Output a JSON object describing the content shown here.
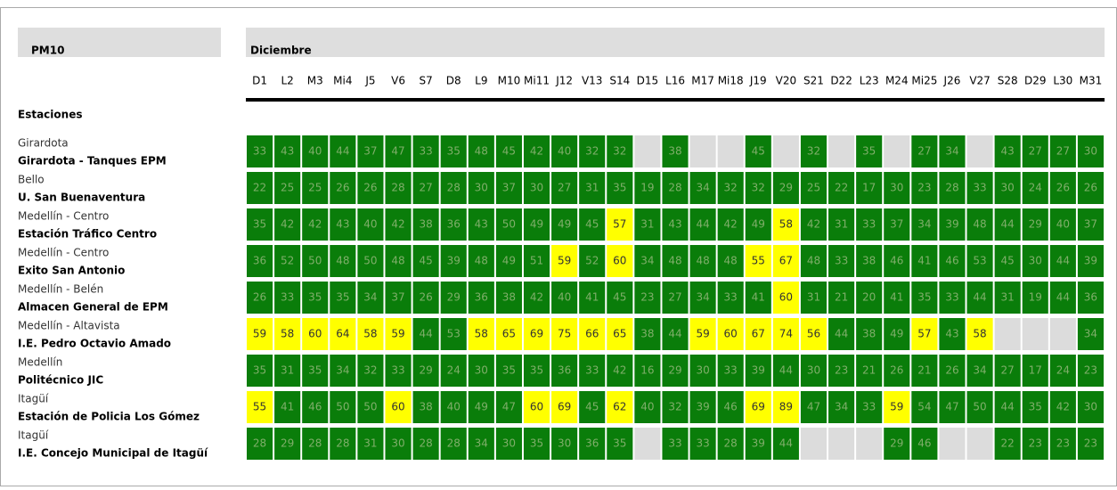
{
  "header": {
    "title": "PM10",
    "month": "Diciembre",
    "stations_label": "Estaciones"
  },
  "days": [
    "D1",
    "L2",
    "M3",
    "Mi4",
    "J5",
    "V6",
    "S7",
    "D8",
    "L9",
    "M10",
    "Mi11",
    "J12",
    "V13",
    "S14",
    "D15",
    "L16",
    "M17",
    "Mi18",
    "J19",
    "V20",
    "S21",
    "D22",
    "L23",
    "M24",
    "Mi25",
    "J26",
    "V27",
    "S28",
    "D29",
    "L30",
    "M31"
  ],
  "stations": [
    {
      "municipality": "Girardota",
      "name": "Girardota - Tanques EPM",
      "values": [
        33,
        43,
        40,
        44,
        37,
        47,
        33,
        35,
        48,
        45,
        42,
        40,
        32,
        32,
        null,
        38,
        null,
        null,
        45,
        null,
        32,
        null,
        35,
        null,
        27,
        34,
        null,
        43,
        27,
        27,
        30
      ],
      "colors": [
        "#0a7d0a",
        "#0a7d0a",
        "#0a7d0a",
        "#0a7d0a",
        "#0a7d0a",
        "#0a7d0a",
        "#0a7d0a",
        "#0a7d0a",
        "#0a7d0a",
        "#0a7d0a",
        "#0a7d0a",
        "#0a7d0a",
        "#0a7d0a",
        "#0a7d0a",
        null,
        "#0a7d0a",
        null,
        null,
        "#0a7d0a",
        null,
        "#0a7d0a",
        null,
        "#0a7d0a",
        null,
        "#0a7d0a",
        "#0a7d0a",
        null,
        "#0a7d0a",
        "#0a7d0a",
        "#0a7d0a",
        "#0a7d0a"
      ]
    },
    {
      "municipality": "Bello",
      "name": "U. San Buenaventura",
      "values": [
        22,
        25,
        25,
        26,
        26,
        28,
        27,
        28,
        30,
        37,
        30,
        27,
        31,
        35,
        19,
        28,
        34,
        32,
        32,
        29,
        25,
        22,
        17,
        30,
        23,
        28,
        33,
        30,
        24,
        26,
        26
      ],
      "colors": [
        "#0a7d0a",
        "#0a7d0a",
        "#0a7d0a",
        "#0a7d0a",
        "#0a7d0a",
        "#0a7d0a",
        "#0a7d0a",
        "#0a7d0a",
        "#0a7d0a",
        "#0a7d0a",
        "#0a7d0a",
        "#0a7d0a",
        "#0a7d0a",
        "#0a7d0a",
        "#0a7d0a",
        "#0a7d0a",
        "#0a7d0a",
        "#0a7d0a",
        "#0a7d0a",
        "#0a7d0a",
        "#0a7d0a",
        "#0a7d0a",
        "#0a7d0a",
        "#0a7d0a",
        "#0a7d0a",
        "#0a7d0a",
        "#0a7d0a",
        "#0a7d0a",
        "#0a7d0a",
        "#0a7d0a",
        "#0a7d0a"
      ]
    },
    {
      "municipality": "Medellín - Centro",
      "name": "Estación Tráfico Centro",
      "values": [
        35,
        42,
        42,
        43,
        40,
        42,
        38,
        36,
        43,
        50,
        49,
        49,
        45,
        57,
        31,
        43,
        44,
        42,
        49,
        58,
        42,
        31,
        33,
        37,
        34,
        39,
        48,
        44,
        29,
        40,
        37
      ],
      "colors": [
        "#0a7d0a",
        "#0a7d0a",
        "#0a7d0a",
        "#0a7d0a",
        "#0a7d0a",
        "#0a7d0a",
        "#0a7d0a",
        "#0a7d0a",
        "#0a7d0a",
        "#0a7d0a",
        "#0a7d0a",
        "#0a7d0a",
        "#0a7d0a",
        "#ffff00",
        "#0a7d0a",
        "#0a7d0a",
        "#0a7d0a",
        "#0a7d0a",
        "#0a7d0a",
        "#ffff00",
        "#0a7d0a",
        "#0a7d0a",
        "#0a7d0a",
        "#0a7d0a",
        "#0a7d0a",
        "#0a7d0a",
        "#0a7d0a",
        "#0a7d0a",
        "#0a7d0a",
        "#0a7d0a",
        "#0a7d0a"
      ]
    },
    {
      "municipality": "Medellín - Centro",
      "name": "Exito San Antonio",
      "values": [
        36,
        52,
        50,
        48,
        50,
        48,
        45,
        39,
        48,
        49,
        51,
        59,
        52,
        60,
        34,
        48,
        48,
        48,
        55,
        67,
        48,
        33,
        38,
        46,
        41,
        46,
        53,
        45,
        30,
        44,
        39
      ],
      "colors": [
        "#0a7d0a",
        "#0a7d0a",
        "#0a7d0a",
        "#0a7d0a",
        "#0a7d0a",
        "#0a7d0a",
        "#0a7d0a",
        "#0a7d0a",
        "#0a7d0a",
        "#0a7d0a",
        "#0a7d0a",
        "#ffff00",
        "#0a7d0a",
        "#ffff00",
        "#0a7d0a",
        "#0a7d0a",
        "#0a7d0a",
        "#0a7d0a",
        "#ffff00",
        "#ffff00",
        "#0a7d0a",
        "#0a7d0a",
        "#0a7d0a",
        "#0a7d0a",
        "#0a7d0a",
        "#0a7d0a",
        "#0a7d0a",
        "#0a7d0a",
        "#0a7d0a",
        "#0a7d0a",
        "#0a7d0a"
      ]
    },
    {
      "municipality": "Medellín - Belén",
      "name": "Almacen General de EPM",
      "values": [
        26,
        33,
        35,
        35,
        34,
        37,
        26,
        29,
        36,
        38,
        42,
        40,
        41,
        45,
        23,
        27,
        34,
        33,
        41,
        60,
        31,
        21,
        20,
        41,
        35,
        33,
        44,
        31,
        19,
        44,
        36
      ],
      "colors": [
        "#0a7d0a",
        "#0a7d0a",
        "#0a7d0a",
        "#0a7d0a",
        "#0a7d0a",
        "#0a7d0a",
        "#0a7d0a",
        "#0a7d0a",
        "#0a7d0a",
        "#0a7d0a",
        "#0a7d0a",
        "#0a7d0a",
        "#0a7d0a",
        "#0a7d0a",
        "#0a7d0a",
        "#0a7d0a",
        "#0a7d0a",
        "#0a7d0a",
        "#0a7d0a",
        "#ffff00",
        "#0a7d0a",
        "#0a7d0a",
        "#0a7d0a",
        "#0a7d0a",
        "#0a7d0a",
        "#0a7d0a",
        "#0a7d0a",
        "#0a7d0a",
        "#0a7d0a",
        "#0a7d0a",
        "#0a7d0a"
      ]
    },
    {
      "municipality": "Medellín - Altavista",
      "name": "I.E. Pedro Octavio Amado",
      "values": [
        59,
        58,
        60,
        64,
        58,
        59,
        44,
        53,
        58,
        65,
        69,
        75,
        66,
        65,
        38,
        44,
        59,
        60,
        67,
        74,
        56,
        44,
        38,
        49,
        57,
        43,
        58,
        null,
        null,
        null,
        34
      ],
      "colors": [
        "#ffff00",
        "#ffff00",
        "#ffff00",
        "#ffff00",
        "#ffff00",
        "#ffff00",
        "#0a7d0a",
        "#0a7d0a",
        "#ffff00",
        "#ffff00",
        "#ffff00",
        "#ffff00",
        "#ffff00",
        "#ffff00",
        "#0a7d0a",
        "#0a7d0a",
        "#ffff00",
        "#ffff00",
        "#ffff00",
        "#ffff00",
        "#ffff00",
        "#0a7d0a",
        "#0a7d0a",
        "#0a7d0a",
        "#ffff00",
        "#0a7d0a",
        "#ffff00",
        null,
        null,
        null,
        "#0a7d0a"
      ]
    },
    {
      "municipality": "Medellín",
      "name": "Politécnico JIC",
      "values": [
        35,
        31,
        35,
        34,
        32,
        33,
        29,
        24,
        30,
        35,
        35,
        36,
        33,
        42,
        16,
        29,
        30,
        33,
        39,
        44,
        30,
        23,
        21,
        26,
        21,
        26,
        34,
        27,
        17,
        24,
        23
      ],
      "colors": [
        "#0a7d0a",
        "#0a7d0a",
        "#0a7d0a",
        "#0a7d0a",
        "#0a7d0a",
        "#0a7d0a",
        "#0a7d0a",
        "#0a7d0a",
        "#0a7d0a",
        "#0a7d0a",
        "#0a7d0a",
        "#0a7d0a",
        "#0a7d0a",
        "#0a7d0a",
        "#0a7d0a",
        "#0a7d0a",
        "#0a7d0a",
        "#0a7d0a",
        "#0a7d0a",
        "#0a7d0a",
        "#0a7d0a",
        "#0a7d0a",
        "#0a7d0a",
        "#0a7d0a",
        "#0a7d0a",
        "#0a7d0a",
        "#0a7d0a",
        "#0a7d0a",
        "#0a7d0a",
        "#0a7d0a",
        "#0a7d0a"
      ]
    },
    {
      "municipality": "Itagüí",
      "name": "Estación de Policia Los Gómez",
      "values": [
        55,
        41,
        46,
        50,
        50,
        60,
        38,
        40,
        49,
        47,
        60,
        69,
        45,
        62,
        40,
        32,
        39,
        46,
        69,
        89,
        47,
        34,
        33,
        59,
        54,
        47,
        50,
        44,
        35,
        42,
        30
      ],
      "colors": [
        "#ffff00",
        "#0a7d0a",
        "#0a7d0a",
        "#0a7d0a",
        "#0a7d0a",
        "#ffff00",
        "#0a7d0a",
        "#0a7d0a",
        "#0a7d0a",
        "#0a7d0a",
        "#ffff00",
        "#ffff00",
        "#0a7d0a",
        "#ffff00",
        "#0a7d0a",
        "#0a7d0a",
        "#0a7d0a",
        "#0a7d0a",
        "#ffff00",
        "#ffff00",
        "#0a7d0a",
        "#0a7d0a",
        "#0a7d0a",
        "#ffff00",
        "#0a7d0a",
        "#0a7d0a",
        "#0a7d0a",
        "#0a7d0a",
        "#0a7d0a",
        "#0a7d0a",
        "#0a7d0a"
      ]
    },
    {
      "municipality": "Itagüí",
      "name": "I.E. Concejo Municipal de Itagüí",
      "values": [
        28,
        29,
        28,
        28,
        31,
        30,
        28,
        28,
        34,
        30,
        35,
        30,
        36,
        35,
        null,
        33,
        33,
        28,
        39,
        44,
        null,
        null,
        null,
        29,
        46,
        null,
        null,
        22,
        23,
        23,
        23
      ],
      "colors": [
        "#0a7d0a",
        "#0a7d0a",
        "#0a7d0a",
        "#0a7d0a",
        "#0a7d0a",
        "#0a7d0a",
        "#0a7d0a",
        "#0a7d0a",
        "#0a7d0a",
        "#0a7d0a",
        "#0a7d0a",
        "#0a7d0a",
        "#0a7d0a",
        "#0a7d0a",
        null,
        "#0a7d0a",
        "#0a7d0a",
        "#0a7d0a",
        "#0a7d0a",
        "#0a7d0a",
        null,
        null,
        null,
        "#0a7d0a",
        "#0a7d0a",
        null,
        null,
        "#0a7d0a",
        "#0a7d0a",
        "#0a7d0a",
        "#0a7d0a"
      ]
    }
  ]
}
